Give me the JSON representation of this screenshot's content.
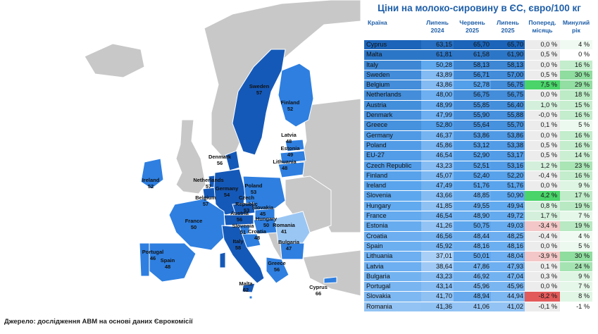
{
  "title": "Ціни на молоко-сировину в ЄС, євро/100 кг",
  "source": "Джерело: дослідження АВМ на основі даних Єврокомісії",
  "colors": {
    "accent": "#1f5fa8",
    "blue_light": "#a9cff6",
    "blue_mid": "#5aa5ee",
    "blue_dark": "#1a63b8",
    "map_country": "#2e7fe0",
    "map_country_dark": "#1559b8",
    "map_country_light": "#9ac6f3",
    "non_eu": "#c8c8c8",
    "pos_strong": "#4ad46a",
    "pos_light": "#d4f0dc",
    "neg_strong": "#e25a5a",
    "neg_light": "#f3c7c7",
    "neutral": "#ececec"
  },
  "chart_data": {
    "type": "table",
    "headers": {
      "country": "Країна",
      "v1": "Липень\n2024",
      "v2": "Червень\n2025",
      "v3": "Липень\n2025",
      "mom": "Поперед.\nмісяць",
      "yoy": "Минулий\nрік"
    },
    "rows": [
      {
        "country": "Cyprus",
        "v1": "63,15",
        "v2": "65,70",
        "v3": "65,70",
        "mom": "0,0 %",
        "yoy": "4 %"
      },
      {
        "country": "Malta",
        "v1": "61,81",
        "v2": "61,58",
        "v3": "61,90",
        "mom": "0,5 %",
        "yoy": "0 %"
      },
      {
        "country": "Italy",
        "v1": "50,28",
        "v2": "58,13",
        "v3": "58,13",
        "mom": "0,0 %",
        "yoy": "16 %"
      },
      {
        "country": "Sweden",
        "v1": "43,89",
        "v2": "56,71",
        "v3": "57,00",
        "mom": "0,5 %",
        "yoy": "30 %"
      },
      {
        "country": "Belgium",
        "v1": "43,86",
        "v2": "52,78",
        "v3": "56,75",
        "mom": "7,5 %",
        "yoy": "29 %"
      },
      {
        "country": "Netherlands",
        "v1": "48,00",
        "v2": "56,75",
        "v3": "56,75",
        "mom": "0,0 %",
        "yoy": "18 %"
      },
      {
        "country": "Austria",
        "v1": "48,99",
        "v2": "55,85",
        "v3": "56,40",
        "mom": "1,0 %",
        "yoy": "15 %"
      },
      {
        "country": "Denmark",
        "v1": "47,99",
        "v2": "55,90",
        "v3": "55,88",
        "mom": "-0,0 %",
        "yoy": "16 %"
      },
      {
        "country": "Greece",
        "v1": "52,80",
        "v2": "55,64",
        "v3": "55,70",
        "mom": "0,1 %",
        "yoy": "5 %"
      },
      {
        "country": "Germany",
        "v1": "46,37",
        "v2": "53,86",
        "v3": "53,86",
        "mom": "0,0 %",
        "yoy": "16 %"
      },
      {
        "country": "Poland",
        "v1": "45,86",
        "v2": "53,12",
        "v3": "53,38",
        "mom": "0,5 %",
        "yoy": "16 %"
      },
      {
        "country": "EU-27",
        "v1": "46,54",
        "v2": "52,90",
        "v3": "53,17",
        "mom": "0,5 %",
        "yoy": "14 %"
      },
      {
        "country": "Czech Republic",
        "v1": "43,23",
        "v2": "52,51",
        "v3": "53,16",
        "mom": "1,2 %",
        "yoy": "23 %"
      },
      {
        "country": "Finland",
        "v1": "45,07",
        "v2": "52,40",
        "v3": "52,20",
        "mom": "-0,4 %",
        "yoy": "16 %"
      },
      {
        "country": "Ireland",
        "v1": "47,49",
        "v2": "51,76",
        "v3": "51,76",
        "mom": "0,0 %",
        "yoy": "9 %"
      },
      {
        "country": "Slovenia",
        "v1": "43,66",
        "v2": "48,85",
        "v3": "50,90",
        "mom": "4,2 %",
        "yoy": "17 %"
      },
      {
        "country": "Hungary",
        "v1": "41,85",
        "v2": "49,55",
        "v3": "49,94",
        "mom": "0,8 %",
        "yoy": "19 %"
      },
      {
        "country": "France",
        "v1": "46,54",
        "v2": "48,90",
        "v3": "49,72",
        "mom": "1,7 %",
        "yoy": "7 %"
      },
      {
        "country": "Estonia",
        "v1": "41,26",
        "v2": "50,75",
        "v3": "49,03",
        "mom": "-3,4 %",
        "yoy": "19 %"
      },
      {
        "country": "Croatia",
        "v1": "46,56",
        "v2": "48,44",
        "v3": "48,25",
        "mom": "-0,4 %",
        "yoy": "4 %"
      },
      {
        "country": "Spain",
        "v1": "45,92",
        "v2": "48,16",
        "v3": "48,16",
        "mom": "0,0 %",
        "yoy": "5 %"
      },
      {
        "country": "Lithuania",
        "v1": "37,01",
        "v2": "50,01",
        "v3": "48,04",
        "mom": "-3,9 %",
        "yoy": "30 %"
      },
      {
        "country": "Latvia",
        "v1": "38,64",
        "v2": "47,86",
        "v3": "47,93",
        "mom": "0,1 %",
        "yoy": "24 %"
      },
      {
        "country": "Bulgaria",
        "v1": "43,23",
        "v2": "46,92",
        "v3": "47,04",
        "mom": "0,3 %",
        "yoy": "9 %"
      },
      {
        "country": "Portugal",
        "v1": "43,14",
        "v2": "45,96",
        "v3": "45,96",
        "mom": "0,0 %",
        "yoy": "7 %"
      },
      {
        "country": "Slovakia",
        "v1": "41,70",
        "v2": "48,94",
        "v3": "44,94",
        "mom": "-8,2 %",
        "yoy": "8 %"
      },
      {
        "country": "Romania",
        "v1": "41,36",
        "v2": "41,06",
        "v3": "41,02",
        "mom": "-0,1 %",
        "yoy": "-1 %"
      }
    ]
  },
  "map_labels": [
    {
      "name": "Sweden",
      "value": "57"
    },
    {
      "name": "Finland",
      "value": "52"
    },
    {
      "name": "Latvia",
      "value": "48"
    },
    {
      "name": "Estonia",
      "value": "49"
    },
    {
      "name": "Lithuania",
      "value": "48"
    },
    {
      "name": "Denmark",
      "value": "56"
    },
    {
      "name": "Ireland",
      "value": "52"
    },
    {
      "name": "Netherlands",
      "value": "57"
    },
    {
      "name": "Germany",
      "value": "54"
    },
    {
      "name": "Poland",
      "value": "53"
    },
    {
      "name": "Belgium",
      "value": "57"
    },
    {
      "name": "Czech\nRepublic",
      "value": "53"
    },
    {
      "name": "Slovakia",
      "value": "45"
    },
    {
      "name": "France",
      "value": "50"
    },
    {
      "name": "Austria",
      "value": "56"
    },
    {
      "name": "Hungary",
      "value": "50"
    },
    {
      "name": "Slovenia",
      "value": "51"
    },
    {
      "name": "Croatia",
      "value": "48"
    },
    {
      "name": "Romania",
      "value": "41"
    },
    {
      "name": "Italy",
      "value": "58"
    },
    {
      "name": "Bulgaria",
      "value": "47"
    },
    {
      "name": "Portugal",
      "value": "46"
    },
    {
      "name": "Spain",
      "value": "48"
    },
    {
      "name": "Greece",
      "value": "56"
    },
    {
      "name": "Malta",
      "value": "62"
    },
    {
      "name": "Cyprus",
      "value": "66"
    }
  ]
}
